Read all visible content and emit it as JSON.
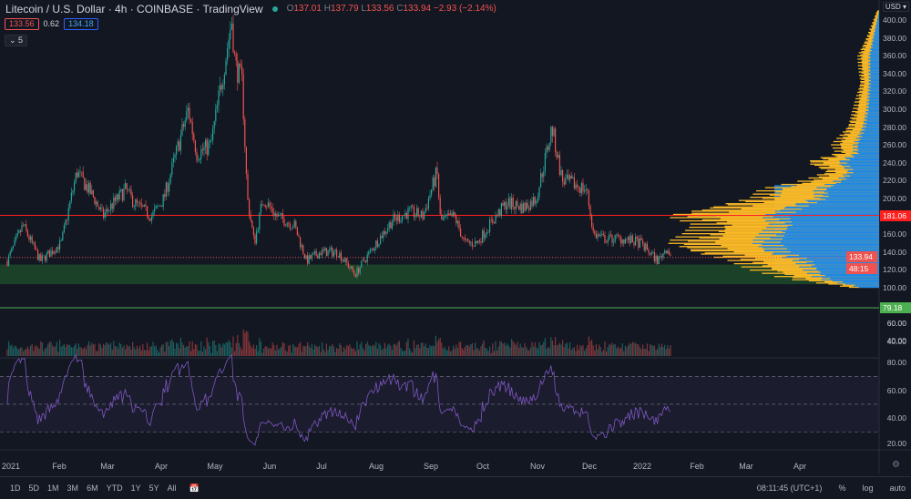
{
  "header": {
    "symbol": "Litecoin / U.S. Dollar · 4h · COINBASE · TradingView",
    "open_label": "O",
    "open": "137.01",
    "high_label": "H",
    "high": "137.79",
    "low_label": "L",
    "low": "133.56",
    "close_label": "C",
    "close": "133.94",
    "change": "−2.93 (−2.14%)",
    "bid": "133.56",
    "spread": "0.62",
    "ask": "134.18",
    "indicators_count": "5",
    "currency": "USD"
  },
  "colors": {
    "up": "#26a69a",
    "down": "#ef5350",
    "rsi": "#7e57c2",
    "profile_up": "#1e88e5",
    "profile_total": "#f9b826",
    "resistance": "#ff1f1f",
    "support": "#4caf50"
  },
  "chart_data": {
    "type": "candlestick",
    "price_axis": {
      "ticks": [
        "400.00",
        "380.00",
        "360.00",
        "340.00",
        "320.00",
        "300.00",
        "280.00",
        "260.00",
        "240.00",
        "220.00",
        "200.00",
        "160.00",
        "140.00",
        "120.00",
        "100.00",
        "60.00",
        "40.00"
      ],
      "range": [
        60,
        410
      ]
    },
    "price_tags": {
      "resistance": "181.06",
      "last": "133.94",
      "countdown": "48:15",
      "support": "79.18"
    },
    "support_zone": [
      104,
      126
    ],
    "closes": [
      [
        "2021-01-01",
        130
      ],
      [
        "2021-01-10",
        170
      ],
      [
        "2021-01-20",
        130
      ],
      [
        "2021-02-01",
        150
      ],
      [
        "2021-02-10",
        230
      ],
      [
        "2021-02-20",
        200
      ],
      [
        "2021-02-25",
        180
      ],
      [
        "2021-03-01",
        190
      ],
      [
        "2021-03-10",
        210
      ],
      [
        "2021-03-15",
        195
      ],
      [
        "2021-03-25",
        180
      ],
      [
        "2021-04-01",
        200
      ],
      [
        "2021-04-08",
        250
      ],
      [
        "2021-04-15",
        300
      ],
      [
        "2021-04-20",
        250
      ],
      [
        "2021-04-28",
        260
      ],
      [
        "2021-05-05",
        340
      ],
      [
        "2021-05-10",
        400
      ],
      [
        "2021-05-12",
        350
      ],
      [
        "2021-05-16",
        330
      ],
      [
        "2021-05-19",
        200
      ],
      [
        "2021-05-23",
        150
      ],
      [
        "2021-05-28",
        200
      ],
      [
        "2021-06-05",
        180
      ],
      [
        "2021-06-15",
        170
      ],
      [
        "2021-06-22",
        130
      ],
      [
        "2021-06-30",
        140
      ],
      [
        "2021-07-10",
        140
      ],
      [
        "2021-07-20",
        115
      ],
      [
        "2021-07-25",
        130
      ],
      [
        "2021-08-01",
        150
      ],
      [
        "2021-08-10",
        175
      ],
      [
        "2021-08-20",
        185
      ],
      [
        "2021-08-28",
        180
      ],
      [
        "2021-09-05",
        230
      ],
      [
        "2021-09-07",
        175
      ],
      [
        "2021-09-15",
        180
      ],
      [
        "2021-09-21",
        150
      ],
      [
        "2021-09-28",
        150
      ],
      [
        "2021-10-05",
        170
      ],
      [
        "2021-10-15",
        195
      ],
      [
        "2021-10-25",
        190
      ],
      [
        "2021-11-01",
        200
      ],
      [
        "2021-11-08",
        260
      ],
      [
        "2021-11-10",
        280
      ],
      [
        "2021-11-16",
        220
      ],
      [
        "2021-11-24",
        215
      ],
      [
        "2021-11-30",
        210
      ],
      [
        "2021-12-04",
        160
      ],
      [
        "2021-12-10",
        155
      ],
      [
        "2021-12-20",
        155
      ],
      [
        "2021-12-31",
        150
      ],
      [
        "2022-01-10",
        130
      ],
      [
        "2022-01-15",
        145
      ],
      [
        "2022-01-18",
        133.94
      ]
    ],
    "volume_profile": [
      [
        100,
        0.15,
        0.1
      ],
      [
        110,
        0.45,
        0.3
      ],
      [
        120,
        0.6,
        0.35
      ],
      [
        130,
        0.7,
        0.4
      ],
      [
        140,
        0.9,
        0.55
      ],
      [
        150,
        1.0,
        0.6
      ],
      [
        160,
        0.9,
        0.55
      ],
      [
        170,
        0.85,
        0.5
      ],
      [
        180,
        1.0,
        0.55
      ],
      [
        190,
        0.8,
        0.45
      ],
      [
        200,
        0.6,
        0.3
      ],
      [
        210,
        0.55,
        0.3
      ],
      [
        220,
        0.35,
        0.2
      ],
      [
        230,
        0.25,
        0.15
      ],
      [
        240,
        0.35,
        0.2
      ],
      [
        250,
        0.2,
        0.12
      ],
      [
        260,
        0.22,
        0.12
      ],
      [
        280,
        0.15,
        0.08
      ],
      [
        300,
        0.12,
        0.06
      ],
      [
        330,
        0.09,
        0.05
      ],
      [
        360,
        0.1,
        0.05
      ],
      [
        380,
        0.06,
        0.03
      ],
      [
        410,
        0.01,
        0
      ]
    ],
    "volume_axis": {
      "ticks": [
        "60.00",
        "40.00"
      ]
    },
    "rsi_axis": {
      "ticks": [
        "80.00",
        "60.00",
        "40.00",
        "20.00"
      ],
      "levels": [
        70,
        50,
        30
      ]
    },
    "time_axis": [
      "2021",
      "Feb",
      "Mar",
      "Apr",
      "May",
      "Jun",
      "Jul",
      "Aug",
      "Sep",
      "Oct",
      "Nov",
      "Dec",
      "2022",
      "Feb",
      "Mar",
      "Apr"
    ]
  },
  "toolbar": {
    "ranges": [
      "1D",
      "5D",
      "1M",
      "3M",
      "6M",
      "YTD",
      "1Y",
      "5Y",
      "All"
    ],
    "clock": "08:11:45 (UTC+1)",
    "percent": "%",
    "log": "log",
    "auto": "auto"
  }
}
